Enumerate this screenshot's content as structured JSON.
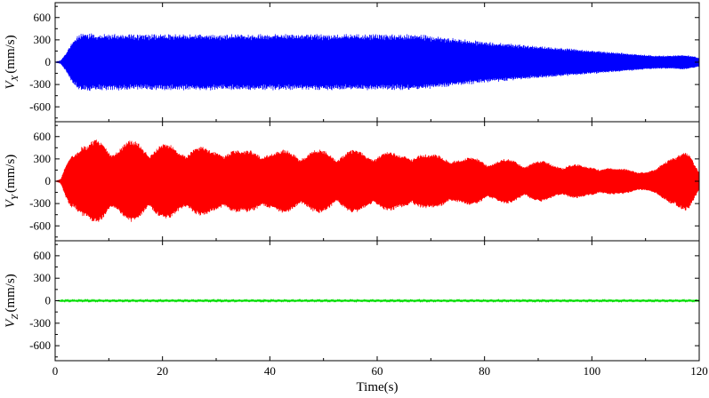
{
  "chart_data": [
    {
      "type": "line",
      "panel": "top",
      "ylabel_main": "V",
      "ylabel_sub": "X",
      "ylabel_unit": "(mm/s)",
      "xlim": [
        0,
        120
      ],
      "ylim": [
        -800,
        800
      ],
      "yticks": [
        -600,
        -300,
        0,
        300,
        600
      ],
      "ytick_labels": [
        "-600",
        "-300",
        "0",
        "300",
        "600"
      ],
      "series": [
        {
          "color": "#0000ff",
          "envelope": {
            "x": [
              0,
              1,
              2,
              3,
              4,
              5,
              6,
              8,
              10,
              20,
              30,
              40,
              50,
              60,
              68,
              70,
              75,
              80,
              85,
              90,
              95,
              100,
              105,
              110,
              112,
              115,
              117,
              118,
              119,
              120
            ],
            "amplitude": [
              0,
              20,
              120,
              260,
              350,
              400,
              395,
              380,
              380,
              380,
              380,
              380,
              380,
              380,
              380,
              360,
              320,
              280,
              250,
              220,
              190,
              160,
              130,
              100,
              90,
              90,
              100,
              90,
              80,
              60
            ]
          },
          "frequency_hz": 1.6
        }
      ]
    },
    {
      "type": "line",
      "panel": "middle",
      "ylabel_main": "V",
      "ylabel_sub": "Y",
      "ylabel_unit": "(mm/s)",
      "xlim": [
        0,
        120
      ],
      "ylim": [
        -800,
        800
      ],
      "yticks": [
        -600,
        -300,
        0,
        300,
        600
      ],
      "ytick_labels": [
        "-600",
        "-300",
        "0",
        "300",
        "600"
      ],
      "series": [
        {
          "color": "#ff0000",
          "envelope": {
            "x": [
              0,
              1,
              2,
              3,
              5,
              8,
              10,
              15,
              20,
              30,
              40,
              50,
              60,
              70,
              75,
              80,
              90,
              100,
              105,
              110,
              112,
              114,
              115,
              116,
              117,
              118,
              119,
              120
            ],
            "amplitude": [
              0,
              20,
              250,
              450,
              560,
              580,
              520,
              560,
              510,
              470,
              440,
              430,
              420,
              400,
              340,
              320,
              280,
              220,
              190,
              150,
              170,
              300,
              420,
              500,
              480,
              400,
              250,
              120
            ]
          },
          "frequency_hz": 1.2,
          "beat_period_s": 7
        }
      ]
    },
    {
      "type": "line",
      "panel": "bottom",
      "ylabel_main": "V",
      "ylabel_sub": "Z",
      "ylabel_unit": "(mm/s)",
      "xlabel": "Time(s)",
      "xlim": [
        0,
        120
      ],
      "xticks": [
        0,
        20,
        40,
        60,
        80,
        100,
        120
      ],
      "xtick_labels": [
        "0",
        "20",
        "40",
        "60",
        "80",
        "100",
        "120"
      ],
      "ylim": [
        -800,
        800
      ],
      "yticks": [
        -600,
        -300,
        0,
        300,
        600
      ],
      "ytick_labels": [
        "-600",
        "-300",
        "0",
        "300",
        "600"
      ],
      "series": [
        {
          "color": "#00dd00",
          "envelope": {
            "x": [
              0,
              2,
              120
            ],
            "amplitude": [
              0,
              12,
              12
            ]
          },
          "frequency_hz": 3
        }
      ]
    }
  ]
}
